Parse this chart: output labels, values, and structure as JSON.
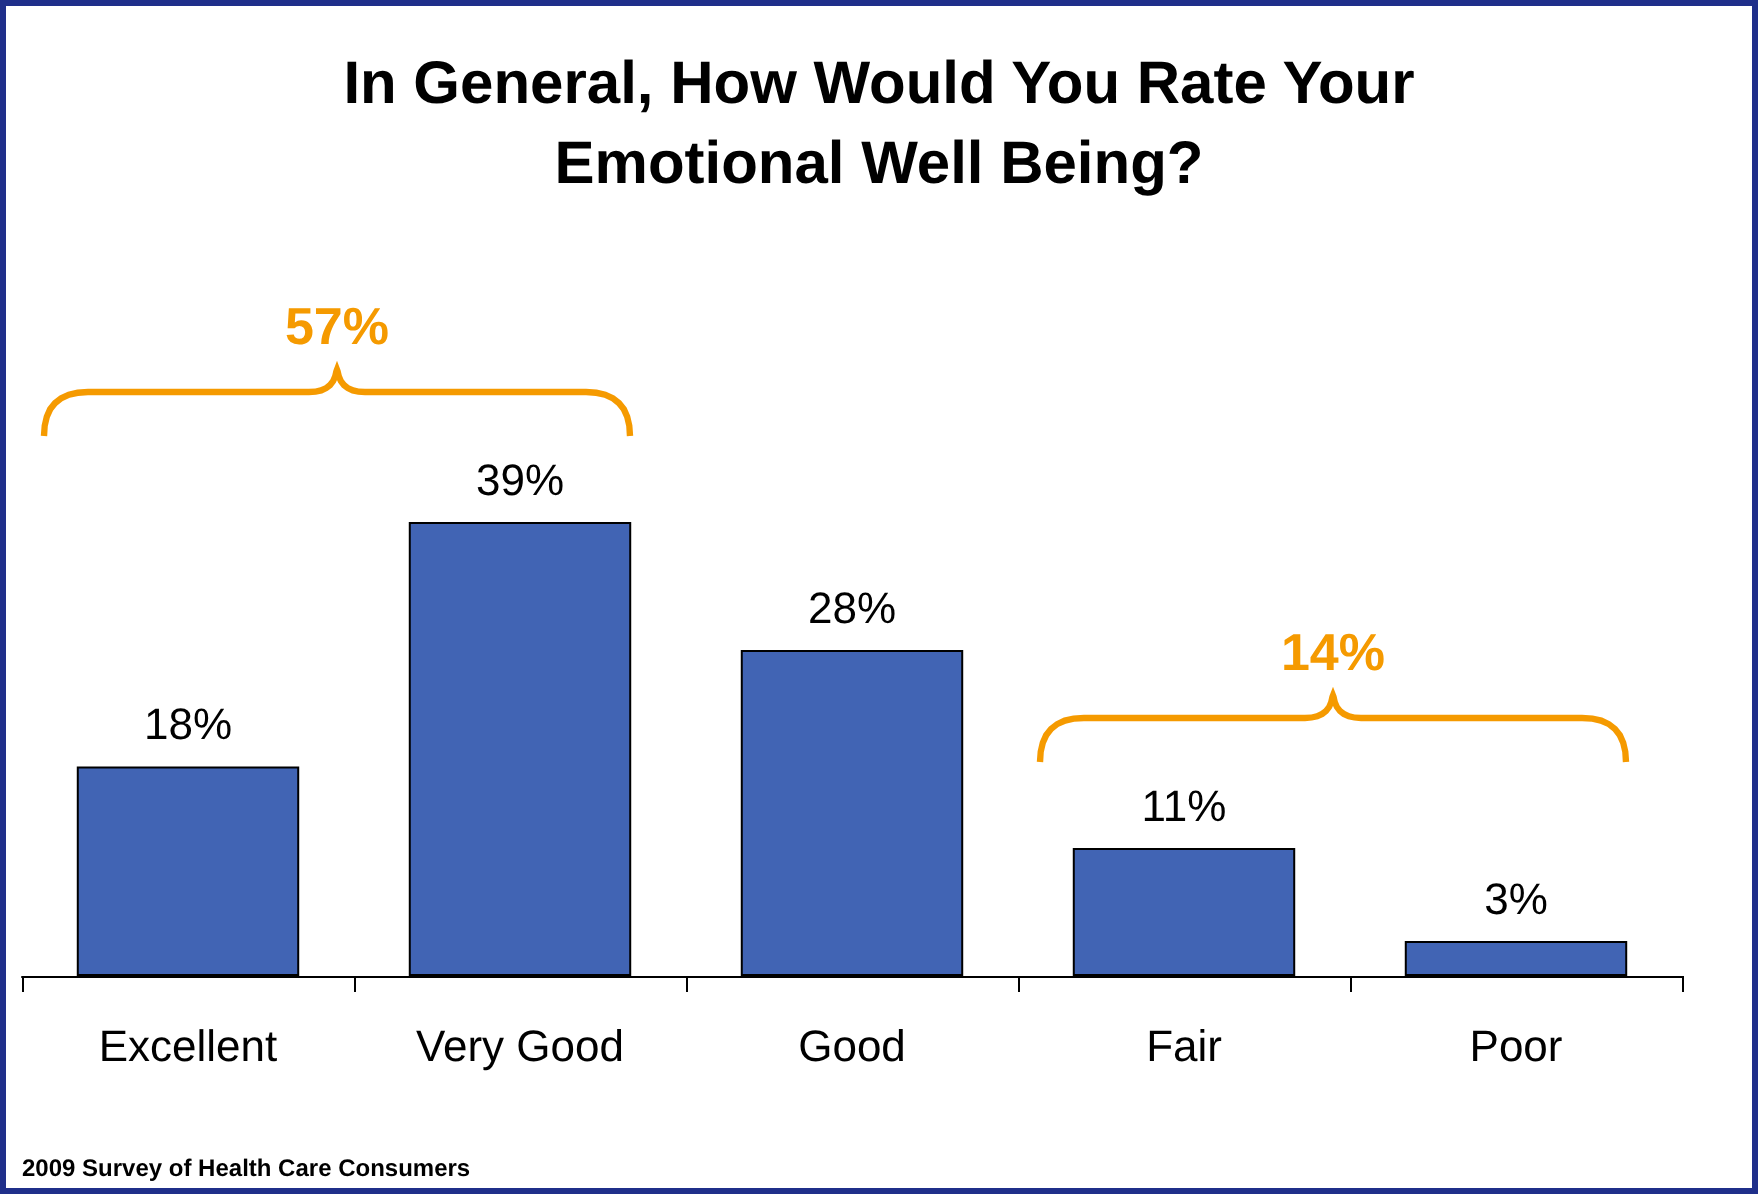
{
  "chart_data": {
    "type": "bar",
    "title": "In General, How Would You Rate Your\nEmotional Well Being?",
    "categories": [
      "Excellent",
      "Very Good",
      "Good",
      "Fair",
      "Poor"
    ],
    "values": [
      18,
      39,
      28,
      11,
      3
    ],
    "color": "#4164b4",
    "value_labels": [
      "18%",
      "39%",
      "28%",
      "11%",
      "3%"
    ],
    "annotations": [
      "57%",
      "14%",
      "2009 Survey of Health Care Consumers"
    ],
    "grid": false
  }
}
